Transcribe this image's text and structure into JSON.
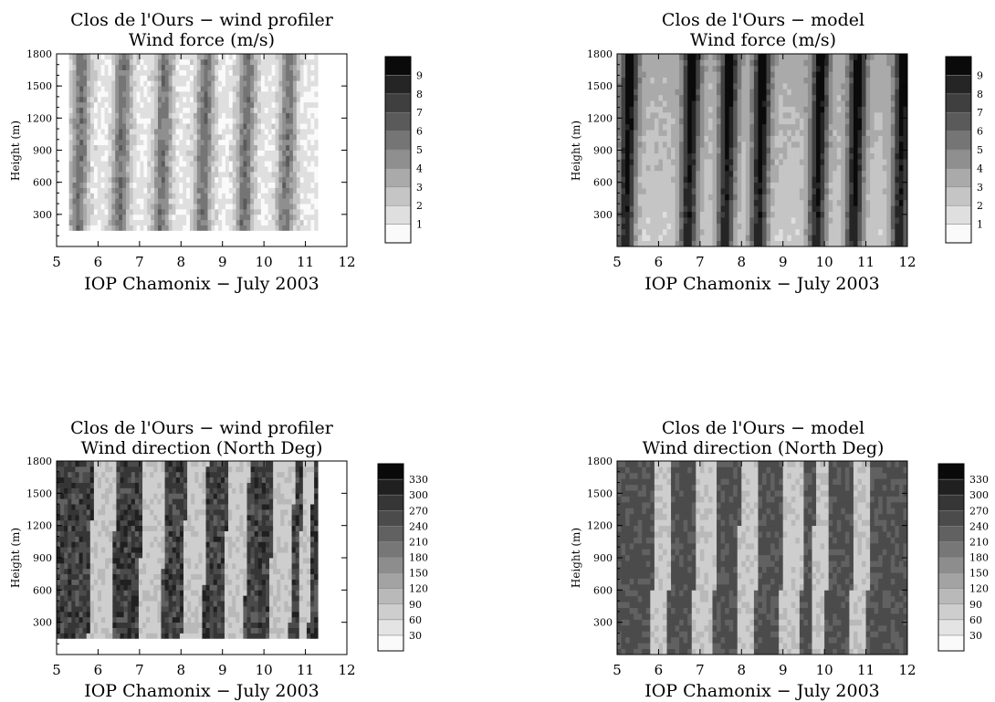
{
  "chart_data": [
    {
      "type": "heatmap",
      "title": "Clos de l'Ours − wind profiler",
      "subtitle": "Wind force (m/s)",
      "xlabel": "IOP Chamonix − July 2003",
      "ylabel": "Height (m)",
      "xlim": [
        5,
        12
      ],
      "ylim": [
        0,
        1800
      ],
      "xticks": [
        "5",
        "6",
        "7",
        "8",
        "9",
        "10",
        "11",
        "12"
      ],
      "yticks": [
        "300",
        "600",
        "900",
        "1200",
        "1500",
        "1800"
      ],
      "colorbar": {
        "levels": [
          "1",
          "2",
          "3",
          "4",
          "5",
          "6",
          "7",
          "8",
          "9"
        ],
        "max": 10
      },
      "data_extent": {
        "x": [
          5.3,
          11.3
        ],
        "y": [
          150,
          1800
        ]
      },
      "hot_days": [
        5.5,
        6.5,
        7.5,
        8.5,
        9.5,
        10.5
      ],
      "scale": 10
    },
    {
      "type": "heatmap",
      "title": "Clos de l'Ours − model",
      "subtitle": "Wind force (m/s)",
      "xlabel": "IOP Chamonix − July 2003",
      "ylabel": "Height (m)",
      "xlim": [
        5,
        12
      ],
      "ylim": [
        0,
        1800
      ],
      "xticks": [
        "5",
        "6",
        "7",
        "8",
        "9",
        "10",
        "11",
        "12"
      ],
      "yticks": [
        "300",
        "600",
        "900",
        "1200",
        "1500",
        "1800"
      ],
      "colorbar": {
        "levels": [
          "1",
          "2",
          "3",
          "4",
          "5",
          "6",
          "7",
          "8",
          "9"
        ],
        "max": 10
      },
      "data_extent": {
        "x": [
          5,
          12
        ],
        "y": [
          0,
          1800
        ]
      },
      "hot_days": [
        5.2,
        6.7,
        7.6,
        8.4,
        9.8,
        10.7,
        11.8
      ],
      "scale": 10
    },
    {
      "type": "heatmap",
      "title": "Clos de l'Ours − wind profiler",
      "subtitle": "Wind direction (North Deg)",
      "xlabel": "IOP Chamonix − July 2003",
      "ylabel": "Height (m)",
      "xlim": [
        5,
        12
      ],
      "ylim": [
        0,
        1800
      ],
      "xticks": [
        "5",
        "6",
        "7",
        "8",
        "9",
        "10",
        "11",
        "12"
      ],
      "yticks": [
        "300",
        "600",
        "900",
        "1200",
        "1500",
        "1800"
      ],
      "colorbar": {
        "levels": [
          "30",
          "60",
          "90",
          "120",
          "150",
          "180",
          "210",
          "240",
          "270",
          "300",
          "330"
        ],
        "max": 360
      },
      "data_extent": {
        "x": [
          5,
          11.3
        ],
        "y": [
          150,
          1800
        ]
      },
      "light_bands": [
        [
          5.75,
          6.3
        ],
        [
          6.95,
          7.5
        ],
        [
          8.0,
          8.5
        ],
        [
          9.0,
          9.5
        ],
        [
          10.1,
          10.6
        ],
        [
          10.8,
          11.05
        ]
      ],
      "scale": 360
    },
    {
      "type": "heatmap",
      "title": "Clos de l'Ours − model",
      "subtitle": "Wind direction (North Deg)",
      "xlabel": "IOP Chamonix − July 2003",
      "ylabel": "Height (m)",
      "xlim": [
        5,
        12
      ],
      "ylim": [
        0,
        1800
      ],
      "xticks": [
        "5",
        "6",
        "7",
        "8",
        "9",
        "10",
        "11",
        "12"
      ],
      "yticks": [
        "300",
        "600",
        "900",
        "1200",
        "1500",
        "1800"
      ],
      "colorbar": {
        "levels": [
          "30",
          "60",
          "90",
          "120",
          "150",
          "180",
          "210",
          "240",
          "270",
          "300",
          "330"
        ],
        "max": 360
      },
      "data_extent": {
        "x": [
          5,
          12
        ],
        "y": [
          0,
          1800
        ]
      },
      "light_bands": [
        [
          5.8,
          6.2
        ],
        [
          6.8,
          7.3
        ],
        [
          7.85,
          8.3
        ],
        [
          8.9,
          9.4
        ],
        [
          9.65,
          10.0
        ],
        [
          10.6,
          11.0
        ]
      ],
      "scale": 360
    }
  ]
}
